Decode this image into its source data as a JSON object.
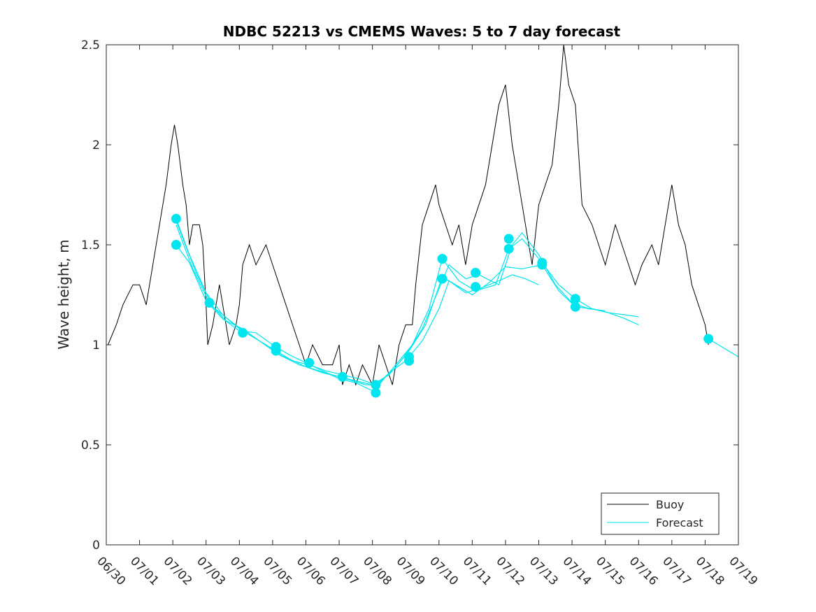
{
  "chart_data": {
    "type": "line",
    "title": "NDBC 52213 vs CMEMS Waves: 5 to 7 day forecast",
    "xlabel": "",
    "ylabel": "Wave height, m",
    "xlim": [
      0,
      19
    ],
    "ylim": [
      0,
      2.5
    ],
    "x_tick_labels": [
      "06/30",
      "07/01",
      "07/02",
      "07/03",
      "07/04",
      "07/05",
      "07/06",
      "07/07",
      "07/08",
      "07/09",
      "07/10",
      "07/11",
      "07/12",
      "07/13",
      "07/14",
      "07/15",
      "07/16",
      "07/17",
      "07/18",
      "07/19"
    ],
    "y_ticks": [
      0,
      0.5,
      1,
      1.5,
      2,
      2.5
    ],
    "y_tick_labels": [
      "0",
      "0.5",
      "1",
      "1.5",
      "2",
      "2.5"
    ],
    "legend_position": "bottom-right",
    "grid": false,
    "series": [
      {
        "name": "Buoy",
        "color": "#000000",
        "points": [
          [
            0.05,
            1.0
          ],
          [
            0.3,
            1.1
          ],
          [
            0.5,
            1.2
          ],
          [
            0.8,
            1.3
          ],
          [
            1.0,
            1.3
          ],
          [
            1.2,
            1.2
          ],
          [
            1.4,
            1.4
          ],
          [
            1.6,
            1.6
          ],
          [
            1.8,
            1.8
          ],
          [
            1.95,
            2.0
          ],
          [
            2.05,
            2.1
          ],
          [
            2.15,
            2.0
          ],
          [
            2.3,
            1.8
          ],
          [
            2.4,
            1.7
          ],
          [
            2.5,
            1.5
          ],
          [
            2.6,
            1.6
          ],
          [
            2.8,
            1.6
          ],
          [
            2.9,
            1.5
          ],
          [
            3.0,
            1.2
          ],
          [
            3.05,
            1.0
          ],
          [
            3.2,
            1.1
          ],
          [
            3.3,
            1.2
          ],
          [
            3.4,
            1.3
          ],
          [
            3.6,
            1.1
          ],
          [
            3.7,
            1.0
          ],
          [
            3.9,
            1.1
          ],
          [
            4.0,
            1.2
          ],
          [
            4.1,
            1.4
          ],
          [
            4.3,
            1.5
          ],
          [
            4.5,
            1.4
          ],
          [
            4.8,
            1.5
          ],
          [
            5.0,
            1.4
          ],
          [
            5.2,
            1.3
          ],
          [
            5.4,
            1.2
          ],
          [
            5.6,
            1.1
          ],
          [
            5.8,
            1.0
          ],
          [
            6.0,
            0.9
          ],
          [
            6.2,
            1.0
          ],
          [
            6.5,
            0.9
          ],
          [
            6.8,
            0.9
          ],
          [
            7.0,
            1.0
          ],
          [
            7.1,
            0.8
          ],
          [
            7.3,
            0.9
          ],
          [
            7.5,
            0.8
          ],
          [
            7.7,
            0.9
          ],
          [
            8.0,
            0.8
          ],
          [
            8.2,
            1.0
          ],
          [
            8.4,
            0.9
          ],
          [
            8.6,
            0.8
          ],
          [
            8.8,
            1.0
          ],
          [
            9.0,
            1.1
          ],
          [
            9.2,
            1.1
          ],
          [
            9.3,
            1.3
          ],
          [
            9.5,
            1.6
          ],
          [
            9.7,
            1.7
          ],
          [
            9.9,
            1.8
          ],
          [
            10.0,
            1.7
          ],
          [
            10.2,
            1.6
          ],
          [
            10.4,
            1.5
          ],
          [
            10.6,
            1.6
          ],
          [
            10.8,
            1.4
          ],
          [
            11.0,
            1.6
          ],
          [
            11.2,
            1.7
          ],
          [
            11.4,
            1.8
          ],
          [
            11.6,
            2.0
          ],
          [
            11.8,
            2.2
          ],
          [
            12.0,
            2.3
          ],
          [
            12.2,
            2.0
          ],
          [
            12.4,
            1.8
          ],
          [
            12.6,
            1.6
          ],
          [
            12.8,
            1.4
          ],
          [
            13.0,
            1.7
          ],
          [
            13.2,
            1.8
          ],
          [
            13.4,
            1.9
          ],
          [
            13.6,
            2.2
          ],
          [
            13.75,
            2.5
          ],
          [
            13.9,
            2.3
          ],
          [
            14.1,
            2.2
          ],
          [
            14.3,
            1.7
          ],
          [
            14.6,
            1.6
          ],
          [
            14.8,
            1.5
          ],
          [
            15.0,
            1.4
          ],
          [
            15.3,
            1.6
          ],
          [
            15.5,
            1.5
          ],
          [
            15.7,
            1.4
          ],
          [
            15.9,
            1.3
          ],
          [
            16.1,
            1.4
          ],
          [
            16.4,
            1.5
          ],
          [
            16.6,
            1.4
          ],
          [
            16.8,
            1.6
          ],
          [
            17.0,
            1.8
          ],
          [
            17.2,
            1.6
          ],
          [
            17.4,
            1.5
          ],
          [
            17.6,
            1.3
          ],
          [
            17.8,
            1.2
          ],
          [
            18.0,
            1.1
          ],
          [
            18.1,
            1.0
          ]
        ]
      },
      {
        "name": "Forecast",
        "color": "#00e5ee",
        "lines": [
          [
            [
              2.1,
              1.63
            ],
            [
              2.5,
              1.45
            ],
            [
              3.0,
              1.26
            ],
            [
              3.5,
              1.15
            ],
            [
              4.0,
              1.08
            ],
            [
              4.5,
              1.03
            ],
            [
              5.0,
              0.98
            ],
            [
              5.5,
              0.93
            ],
            [
              6.0,
              0.89
            ],
            [
              6.5,
              0.86
            ],
            [
              7.0,
              0.84
            ],
            [
              7.5,
              0.82
            ],
            [
              8.0,
              0.8
            ],
            [
              8.5,
              0.85
            ],
            [
              9.0,
              0.95
            ],
            [
              9.5,
              1.08
            ],
            [
              10.0,
              1.28
            ],
            [
              10.3,
              1.4
            ],
            [
              10.8,
              1.33
            ],
            [
              11.2,
              1.35
            ],
            [
              11.8,
              1.3
            ],
            [
              12.2,
              1.5
            ],
            [
              12.5,
              1.56
            ],
            [
              13.0,
              1.45
            ],
            [
              13.5,
              1.3
            ],
            [
              14.0,
              1.21
            ],
            [
              14.5,
              1.18
            ],
            [
              15.0,
              1.17
            ]
          ],
          [
            [
              2.1,
              1.5
            ],
            [
              2.5,
              1.41
            ],
            [
              3.0,
              1.22
            ],
            [
              3.5,
              1.13
            ],
            [
              4.0,
              1.07
            ],
            [
              4.5,
              1.06
            ],
            [
              5.0,
              1.0
            ],
            [
              5.5,
              0.95
            ],
            [
              6.0,
              0.91
            ],
            [
              6.5,
              0.87
            ],
            [
              7.0,
              0.83
            ],
            [
              7.5,
              0.81
            ],
            [
              8.0,
              0.77
            ],
            [
              8.5,
              0.86
            ],
            [
              9.0,
              0.92
            ],
            [
              9.5,
              1.02
            ],
            [
              10.0,
              1.18
            ],
            [
              10.3,
              1.32
            ],
            [
              10.8,
              1.26
            ],
            [
              11.2,
              1.28
            ],
            [
              11.8,
              1.32
            ],
            [
              12.2,
              1.35
            ],
            [
              12.6,
              1.33
            ],
            [
              13.0,
              1.3
            ]
          ],
          [
            [
              2.1,
              1.6
            ],
            [
              2.6,
              1.38
            ],
            [
              3.1,
              1.21
            ],
            [
              3.6,
              1.12
            ],
            [
              4.1,
              1.08
            ],
            [
              4.6,
              1.02
            ],
            [
              5.1,
              0.96
            ],
            [
              5.6,
              0.92
            ],
            [
              6.1,
              0.9
            ],
            [
              6.6,
              0.87
            ],
            [
              7.1,
              0.85
            ],
            [
              7.6,
              0.83
            ],
            [
              8.1,
              0.8
            ],
            [
              8.6,
              0.87
            ],
            [
              9.1,
              0.97
            ],
            [
              9.6,
              1.1
            ],
            [
              10.1,
              1.34
            ],
            [
              10.5,
              1.3
            ],
            [
              11.0,
              1.25
            ],
            [
              11.5,
              1.31
            ],
            [
              12.0,
              1.39
            ],
            [
              12.5,
              1.38
            ],
            [
              13.1,
              1.4
            ],
            [
              13.6,
              1.27
            ],
            [
              14.1,
              1.19
            ],
            [
              14.6,
              1.18
            ],
            [
              15.1,
              1.16
            ],
            [
              15.6,
              1.15
            ],
            [
              16.0,
              1.14
            ]
          ],
          [
            [
              2.1,
              1.62
            ],
            [
              2.7,
              1.36
            ],
            [
              3.2,
              1.19
            ],
            [
              3.8,
              1.11
            ],
            [
              4.2,
              1.06
            ],
            [
              4.8,
              1.0
            ],
            [
              5.2,
              0.95
            ],
            [
              5.8,
              0.9
            ],
            [
              6.2,
              0.88
            ],
            [
              6.8,
              0.85
            ],
            [
              7.2,
              0.83
            ],
            [
              7.8,
              0.8
            ],
            [
              8.2,
              0.8
            ],
            [
              8.7,
              0.9
            ],
            [
              9.2,
              1.0
            ],
            [
              9.7,
              1.18
            ],
            [
              10.1,
              1.43
            ],
            [
              10.6,
              1.32
            ],
            [
              11.1,
              1.27
            ],
            [
              11.7,
              1.3
            ],
            [
              12.1,
              1.48
            ],
            [
              12.5,
              1.53
            ],
            [
              13.1,
              1.41
            ],
            [
              13.6,
              1.3
            ],
            [
              14.1,
              1.23
            ],
            [
              14.6,
              1.18
            ],
            [
              15.1,
              1.16
            ],
            [
              15.6,
              1.13
            ],
            [
              16.0,
              1.1
            ]
          ],
          [
            [
              18.1,
              1.03
            ],
            [
              19.0,
              0.94
            ]
          ]
        ],
        "markers": [
          [
            2.1,
            1.63
          ],
          [
            2.1,
            1.5
          ],
          [
            3.1,
            1.21
          ],
          [
            4.1,
            1.06
          ],
          [
            5.1,
            0.99
          ],
          [
            5.1,
            0.97
          ],
          [
            6.1,
            0.91
          ],
          [
            7.1,
            0.84
          ],
          [
            8.1,
            0.8
          ],
          [
            8.1,
            0.76
          ],
          [
            9.1,
            0.94
          ],
          [
            9.1,
            0.92
          ],
          [
            10.1,
            1.43
          ],
          [
            10.1,
            1.33
          ],
          [
            11.1,
            1.36
          ],
          [
            11.1,
            1.29
          ],
          [
            12.1,
            1.53
          ],
          [
            12.1,
            1.48
          ],
          [
            13.1,
            1.41
          ],
          [
            13.1,
            1.4
          ],
          [
            14.1,
            1.23
          ],
          [
            14.1,
            1.19
          ],
          [
            18.1,
            1.03
          ]
        ]
      }
    ]
  }
}
